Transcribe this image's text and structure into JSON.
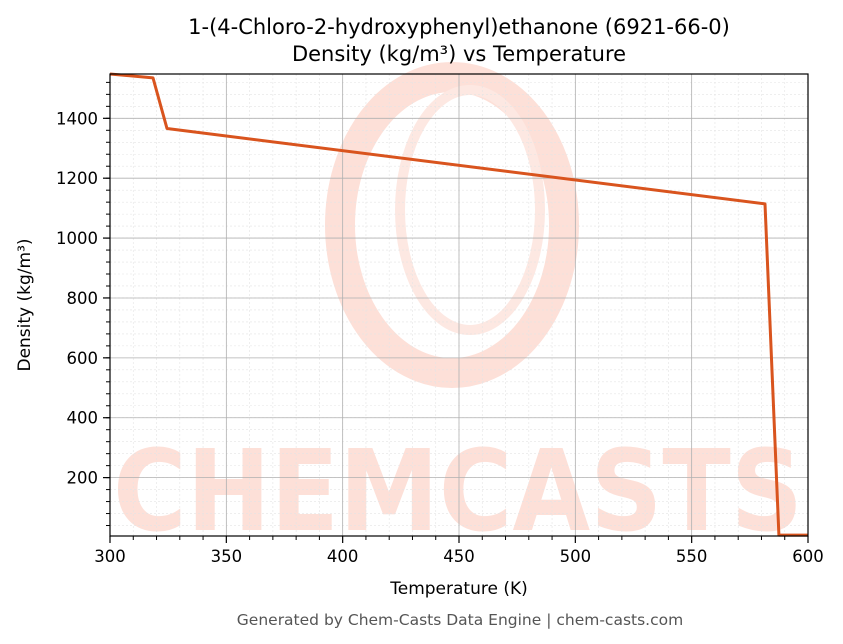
{
  "chart_data": {
    "type": "line",
    "title": "1-(4-Chloro-2-hydroxyphenyl)ethanone (6921-66-0)",
    "subtitle": "Density (kg/m³) vs Temperature",
    "xlabel": "Temperature (K)",
    "ylabel": "Density (kg/m³)",
    "xlim": [
      300,
      600
    ],
    "ylim": [
      5,
      1548
    ],
    "xticks": [
      300,
      350,
      400,
      450,
      500,
      550,
      600
    ],
    "yticks": [
      200,
      400,
      600,
      800,
      1000,
      1200,
      1400
    ],
    "grid": true,
    "series": [
      {
        "color": "#d9541e",
        "x": [
          300,
          318.5,
          324.5,
          581.5,
          587.5,
          600
        ],
        "y": [
          1548,
          1535,
          1366,
          1114,
          8,
          8
        ]
      }
    ]
  },
  "watermark": {
    "text": "CHEMCASTS",
    "color": "#fde0d8"
  },
  "footer": "Generated by Chem-Casts Data Engine | chem-casts.com"
}
